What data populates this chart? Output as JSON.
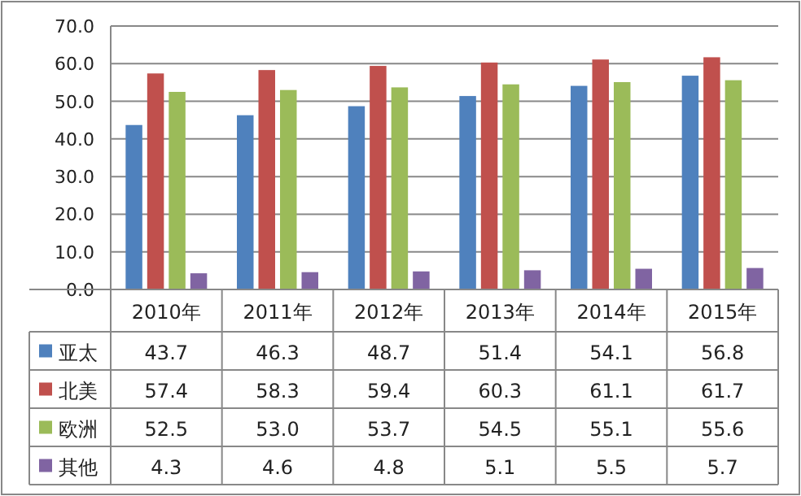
{
  "chart_data": {
    "type": "bar",
    "categories": [
      "2010年",
      "2011年",
      "2012年",
      "2013年",
      "2014年",
      "2015年"
    ],
    "series": [
      {
        "name": "亚太",
        "color": "#4f81bd",
        "values": [
          43.7,
          46.3,
          48.7,
          51.4,
          54.1,
          56.8
        ],
        "value_labels": [
          "43.7",
          "46.3",
          "48.7",
          "51.4",
          "54.1",
          "56.8"
        ]
      },
      {
        "name": "北美",
        "color": "#c0504d",
        "values": [
          57.4,
          58.3,
          59.4,
          60.3,
          61.1,
          61.7
        ],
        "value_labels": [
          "57.4",
          "58.3",
          "59.4",
          "60.3",
          "61.1",
          "61.7"
        ]
      },
      {
        "name": "欧洲",
        "color": "#9bbb59",
        "values": [
          52.5,
          53.0,
          53.7,
          54.5,
          55.1,
          55.6
        ],
        "value_labels": [
          "52.5",
          "53.0",
          "53.7",
          "54.5",
          "55.1",
          "55.6"
        ]
      },
      {
        "name": "其他",
        "color": "#8064a2",
        "values": [
          4.3,
          4.6,
          4.8,
          5.1,
          5.5,
          5.7
        ],
        "value_labels": [
          "4.3",
          "4.6",
          "4.8",
          "5.1",
          "5.5",
          "5.7"
        ]
      }
    ],
    "ylim": [
      0,
      70
    ],
    "yticks": [
      {
        "value": 0,
        "label": "0.0"
      },
      {
        "value": 10,
        "label": "10.0"
      },
      {
        "value": 20,
        "label": "20.0"
      },
      {
        "value": 30,
        "label": "30.0"
      },
      {
        "value": 40,
        "label": "40.0"
      },
      {
        "value": 50,
        "label": "50.0"
      },
      {
        "value": 60,
        "label": "60.0"
      },
      {
        "value": 70,
        "label": "70.0"
      }
    ],
    "grid": "y",
    "legend": "bottom left"
  }
}
